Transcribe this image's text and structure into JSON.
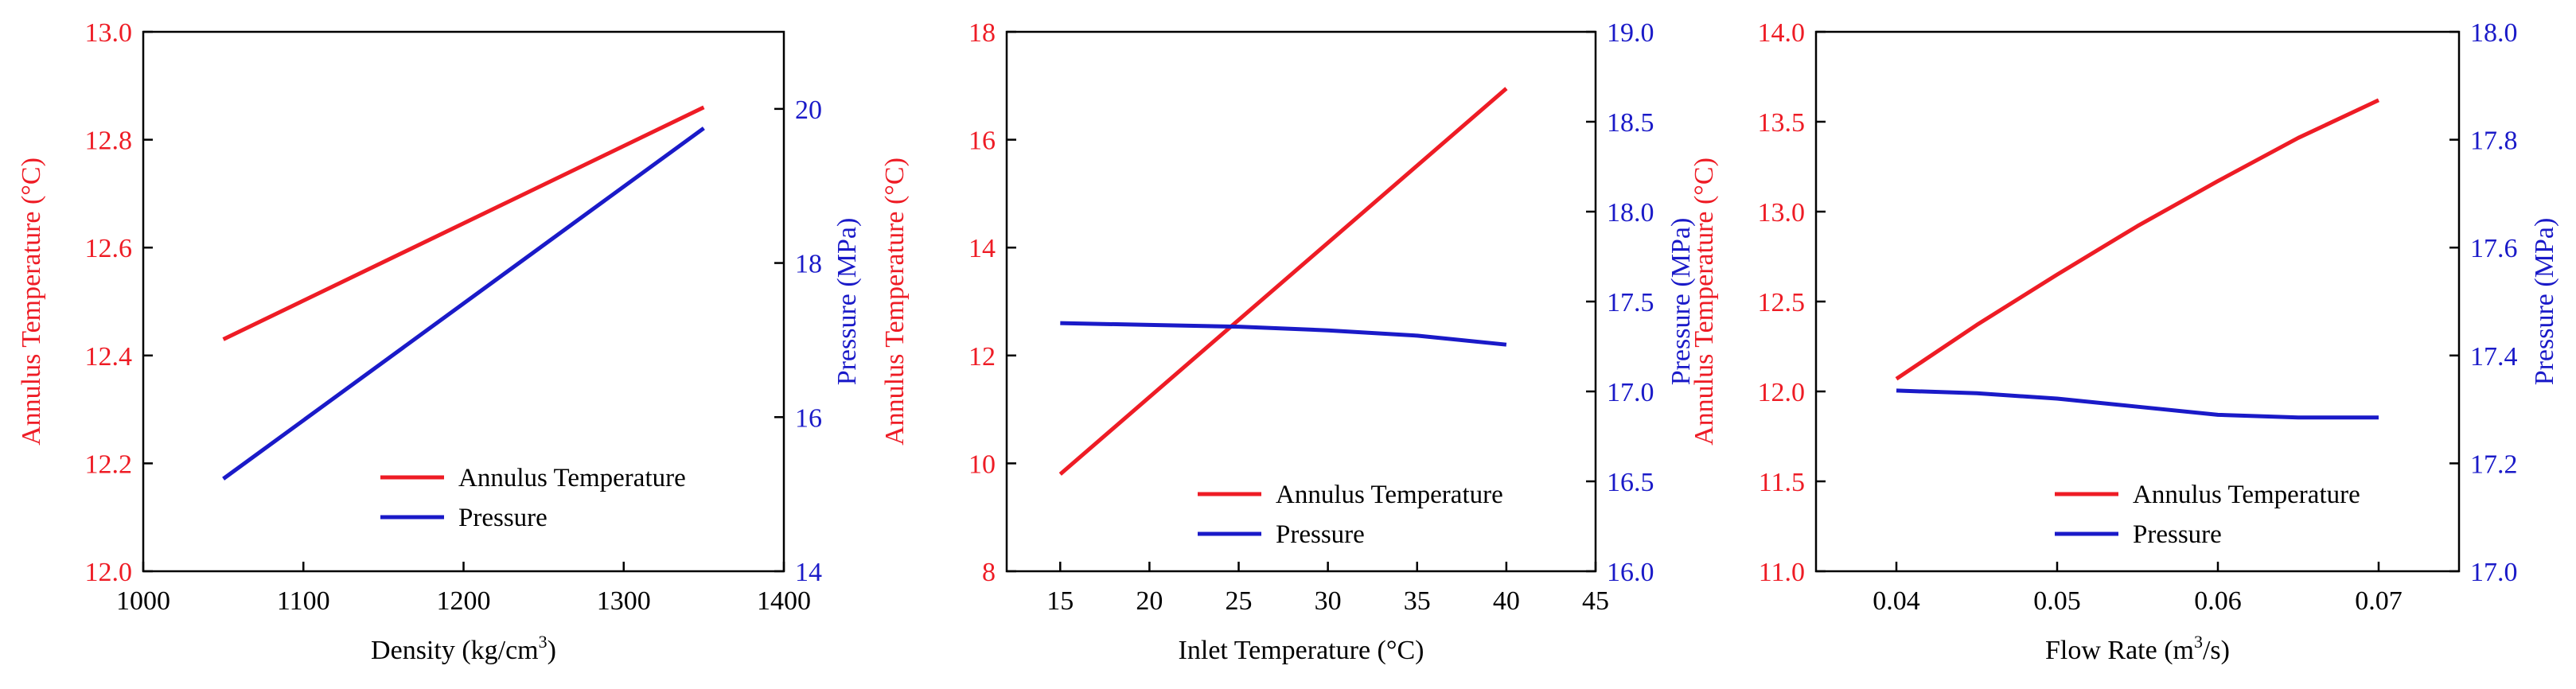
{
  "colors": {
    "temperature": "#ee1c25",
    "pressure": "#1a1ac8",
    "axis": "#000000"
  },
  "chart_data": [
    {
      "type": "line",
      "dual_axis": true,
      "title": "",
      "x": [
        1050,
        1350
      ],
      "xlabel": "Density (kg/cm³)",
      "xlabel_main": "Density (kg/cm",
      "xlabel_sup": "3",
      "xlabel_tail": ")",
      "xlim": [
        1000,
        1400
      ],
      "xticks": [
        1000,
        1100,
        1200,
        1300,
        1400
      ],
      "xtick_labels": [
        "1000",
        "1100",
        "1200",
        "1300",
        "1400"
      ],
      "ylabel_left": "Annulus Temperature (°C)",
      "ylim_left": [
        12.0,
        13.0
      ],
      "yticks_left": [
        12.0,
        12.2,
        12.4,
        12.6,
        12.8,
        13.0
      ],
      "ytick_labels_left": [
        "12.0",
        "12.2",
        "12.4",
        "12.6",
        "12.8",
        "13.0"
      ],
      "ylabel_right": "Pressure (MPa)",
      "ylim_right": [
        14,
        21
      ],
      "yticks_right": [
        14,
        16,
        18,
        20
      ],
      "ytick_labels_right": [
        "14",
        "16",
        "18",
        "20"
      ],
      "series": [
        {
          "name": "Annulus Temperature",
          "axis": "left",
          "x": [
            1050,
            1350
          ],
          "values": [
            12.43,
            12.86
          ]
        },
        {
          "name": "Pressure",
          "axis": "right",
          "x": [
            1050,
            1350
          ],
          "values": [
            15.2,
            19.75
          ]
        }
      ],
      "legend": {
        "position": "bottom-right",
        "entries": [
          "Annulus Temperature",
          "Pressure"
        ]
      }
    },
    {
      "type": "line",
      "dual_axis": true,
      "title": "",
      "xlabel": "Inlet Temperature (°C)",
      "xlim": [
        12,
        45
      ],
      "xticks": [
        15,
        20,
        25,
        30,
        35,
        40,
        45
      ],
      "xtick_labels": [
        "15",
        "20",
        "25",
        "30",
        "35",
        "40",
        "45"
      ],
      "ylabel_left": "Annulus Temperature (°C)",
      "ylim_left": [
        8,
        18
      ],
      "yticks_left": [
        8,
        10,
        12,
        14,
        16,
        18
      ],
      "ytick_labels_left": [
        "8",
        "10",
        "12",
        "14",
        "16",
        "18"
      ],
      "ylabel_right": "Pressure (MPa)",
      "ylim_right": [
        16.0,
        19.0
      ],
      "yticks_right": [
        16.0,
        16.5,
        17.0,
        17.5,
        18.0,
        18.5,
        19.0
      ],
      "ytick_labels_right": [
        "16.0",
        "16.5",
        "17.0",
        "17.5",
        "18.0",
        "18.5",
        "19.0"
      ],
      "series": [
        {
          "name": "Annulus Temperature",
          "axis": "left",
          "x": [
            15,
            40
          ],
          "values": [
            9.8,
            16.95
          ]
        },
        {
          "name": "Pressure",
          "axis": "right",
          "x": [
            15,
            20,
            25,
            30,
            35,
            40
          ],
          "values": [
            17.38,
            17.37,
            17.36,
            17.34,
            17.31,
            17.26
          ]
        }
      ],
      "legend": {
        "position": "bottom-right",
        "entries": [
          "Annulus Temperature",
          "Pressure"
        ]
      }
    },
    {
      "type": "line",
      "dual_axis": true,
      "title": "",
      "xlabel": "Flow Rate (m³/s)",
      "xlabel_main": "Flow Rate (m",
      "xlabel_sup": "3",
      "xlabel_tail": "/s)",
      "xlim": [
        0.035,
        0.075
      ],
      "xticks": [
        0.04,
        0.05,
        0.06,
        0.07
      ],
      "xtick_labels": [
        "0.04",
        "0.05",
        "0.06",
        "0.07"
      ],
      "ylabel_left": "Annulus Temperature (°C)",
      "ylim_left": [
        11.0,
        14.0
      ],
      "yticks_left": [
        11.0,
        11.5,
        12.0,
        12.5,
        13.0,
        13.5,
        14.0
      ],
      "ytick_labels_left": [
        "11.0",
        "11.5",
        "12.0",
        "12.5",
        "13.0",
        "13.5",
        "14.0"
      ],
      "ylabel_right": "Pressure (MPa)",
      "ylim_right": [
        17.0,
        18.0
      ],
      "yticks_right": [
        17.0,
        17.2,
        17.4,
        17.6,
        17.8,
        18.0
      ],
      "ytick_labels_right": [
        "17.0",
        "17.2",
        "17.4",
        "17.6",
        "17.8",
        "18.0"
      ],
      "series": [
        {
          "name": "Annulus Temperature",
          "axis": "left",
          "x": [
            0.04,
            0.045,
            0.05,
            0.055,
            0.06,
            0.065,
            0.07
          ],
          "values": [
            12.07,
            12.37,
            12.65,
            12.92,
            13.17,
            13.41,
            13.62
          ]
        },
        {
          "name": "Pressure",
          "axis": "right",
          "x": [
            0.04,
            0.045,
            0.05,
            0.055,
            0.06,
            0.065,
            0.07
          ],
          "values": [
            17.335,
            17.33,
            17.32,
            17.305,
            17.29,
            17.285,
            17.285
          ]
        }
      ],
      "legend": {
        "position": "bottom-right",
        "entries": [
          "Annulus Temperature",
          "Pressure"
        ]
      }
    }
  ]
}
